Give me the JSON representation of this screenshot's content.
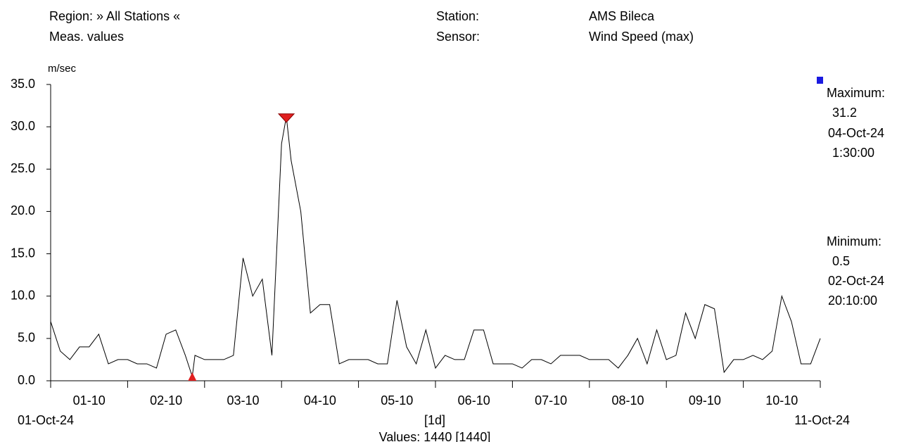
{
  "chart_data": {
    "type": "line",
    "header": {
      "region": "Region: » All Stations «",
      "meas": "Meas. values",
      "station_label": "Station:",
      "station": "AMS Bileca",
      "sensor_label": "Sensor:",
      "sensor": "Wind Speed (max)"
    },
    "y_unit": "m/sec",
    "start_label": "01-Oct-24",
    "end_label": "11-Oct-24",
    "interval_label": "[1d]",
    "count_label": "Values: 1440 [1440]",
    "maximum": {
      "label": "Maximum:",
      "value": 31.2,
      "date": "04-Oct-24",
      "time": "1:30:00",
      "x": 3.0625
    },
    "minimum": {
      "label": "Minimum:",
      "value": 0.5,
      "date": "02-Oct-24",
      "time": "20:10:00",
      "x": 1.84
    },
    "xlim": [
      0,
      10
    ],
    "xticks": [
      0,
      1,
      2,
      3,
      4,
      5,
      6,
      7,
      8,
      9,
      10
    ],
    "day_labels": [
      {
        "value": 0.5,
        "label": "01-10"
      },
      {
        "value": 1.5,
        "label": "02-10"
      },
      {
        "value": 2.5,
        "label": "03-10"
      },
      {
        "value": 3.5,
        "label": "04-10"
      },
      {
        "value": 4.5,
        "label": "05-10"
      },
      {
        "value": 5.5,
        "label": "06-10"
      },
      {
        "value": 6.5,
        "label": "07-10"
      },
      {
        "value": 7.5,
        "label": "08-10"
      },
      {
        "value": 8.5,
        "label": "09-10"
      },
      {
        "value": 9.5,
        "label": "10-10"
      }
    ],
    "ylim": [
      0,
      35
    ],
    "yticks": [
      {
        "value": 0,
        "label": "0.0"
      },
      {
        "value": 5,
        "label": "5.0"
      },
      {
        "value": 10,
        "label": "10.0"
      },
      {
        "value": 15,
        "label": "15.0"
      },
      {
        "value": 20,
        "label": "20.0"
      },
      {
        "value": 25,
        "label": "25.0"
      },
      {
        "value": 30,
        "label": "30.0"
      },
      {
        "value": 35,
        "label": "35.0"
      }
    ],
    "color": "#000000",
    "marker_color": "#e02020",
    "x": [
      0,
      0.125,
      0.25,
      0.375,
      0.5,
      0.625,
      0.75,
      0.875,
      1,
      1.125,
      1.25,
      1.375,
      1.5,
      1.625,
      1.75,
      1.84,
      1.875,
      2,
      2.125,
      2.25,
      2.375,
      2.5,
      2.625,
      2.75,
      2.875,
      3,
      3.0625,
      3.125,
      3.25,
      3.375,
      3.5,
      3.625,
      3.75,
      3.875,
      4,
      4.125,
      4.25,
      4.375,
      4.5,
      4.625,
      4.75,
      4.875,
      5,
      5.125,
      5.25,
      5.375,
      5.5,
      5.625,
      5.75,
      5.875,
      6,
      6.125,
      6.25,
      6.375,
      6.5,
      6.625,
      6.75,
      6.875,
      7,
      7.125,
      7.25,
      7.375,
      7.5,
      7.625,
      7.75,
      7.875,
      8,
      8.125,
      8.25,
      8.375,
      8.5,
      8.625,
      8.75,
      8.875,
      9,
      9.125,
      9.25,
      9.375,
      9.5,
      9.625,
      9.75,
      9.875,
      10
    ],
    "values": [
      7,
      3.5,
      2.5,
      4,
      4,
      5.5,
      2,
      2.5,
      2.5,
      2,
      2,
      1.5,
      5.5,
      6,
      3,
      0.5,
      3,
      2.5,
      2.5,
      2.5,
      3,
      14.5,
      10,
      12,
      3,
      28,
      31.2,
      26,
      20,
      8,
      9,
      9,
      2,
      2.5,
      2.5,
      2.5,
      2,
      2,
      9.5,
      4,
      2,
      6,
      1.5,
      3,
      2.5,
      2.5,
      6,
      6,
      2,
      2,
      2,
      1.5,
      2.5,
      2.5,
      2,
      3,
      3,
      3,
      2.5,
      2.5,
      2.5,
      1.5,
      3,
      5,
      2,
      6,
      2.5,
      3,
      8,
      5,
      9,
      8.5,
      1,
      2.5,
      2.5,
      3,
      2.5,
      3.5,
      10,
      7,
      2,
      2,
      5
    ]
  }
}
